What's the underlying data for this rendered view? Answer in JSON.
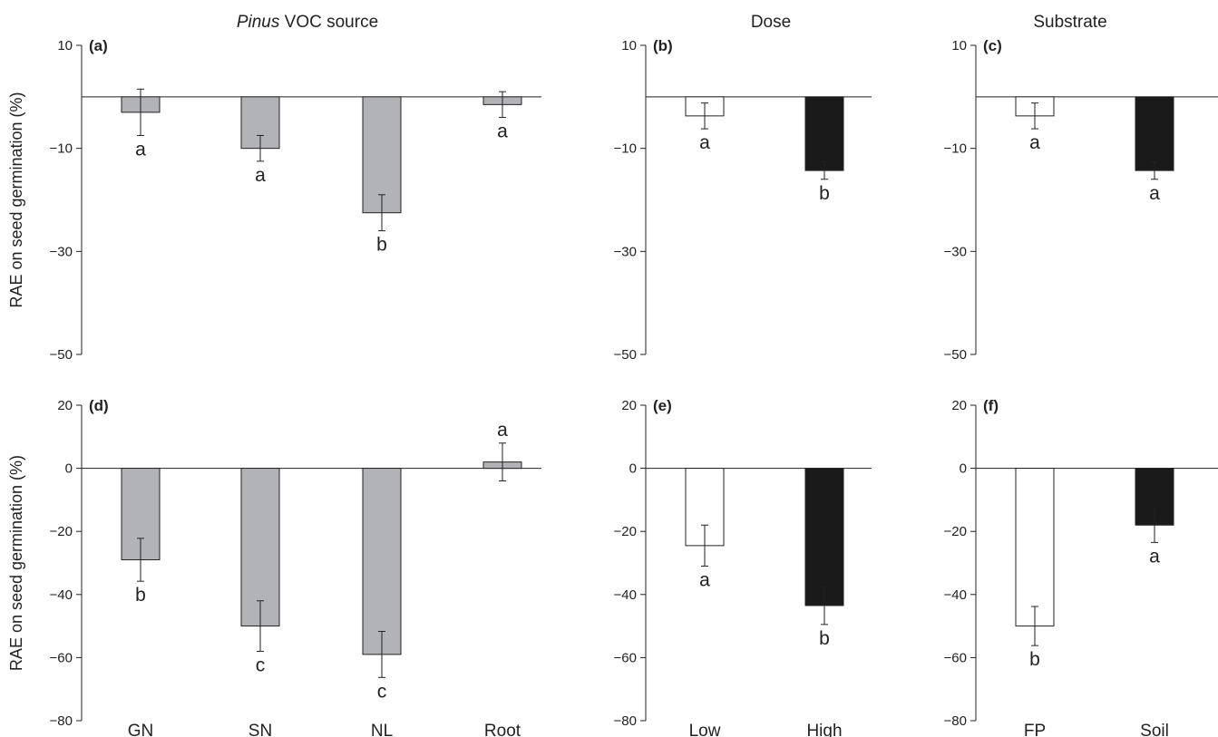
{
  "column_titles": [
    {
      "prefix_italic": "Pinus",
      "rest": " VOC source"
    },
    {
      "prefix_italic": "",
      "rest": "Dose"
    },
    {
      "prefix_italic": "",
      "rest": "Substrate"
    }
  ],
  "colors": {
    "grey": "#b2b3b6",
    "white": "#ffffff",
    "black": "#1a1a1a"
  },
  "chart_data": [
    {
      "type": "bar",
      "panel": "(a)",
      "ylabel": "RAE on seed germination (%)",
      "ylim": [
        -50,
        10
      ],
      "yticks": [
        10,
        -10,
        -30,
        -50
      ],
      "categories": [
        "GN",
        "SN",
        "NL",
        "Root"
      ],
      "show_categories": false,
      "values": [
        -3,
        -10,
        -22.5,
        -1.5
      ],
      "errors": [
        4.5,
        2.5,
        3.5,
        2.5
      ],
      "letters": [
        "a",
        "a",
        "b",
        "a"
      ],
      "letter_pos": [
        "below",
        "below",
        "below",
        "below"
      ],
      "fills": [
        "grey",
        "grey",
        "grey",
        "grey"
      ]
    },
    {
      "type": "bar",
      "panel": "(b)",
      "ylabel": "",
      "ylim": [
        -50,
        10
      ],
      "yticks": [
        10,
        -10,
        -30,
        -50
      ],
      "categories": [
        "Low",
        "High"
      ],
      "show_categories": false,
      "values": [
        -3.7,
        -14.3
      ],
      "errors": [
        2.5,
        1.7
      ],
      "letters": [
        "a",
        "b"
      ],
      "letter_pos": [
        "below",
        "below"
      ],
      "fills": [
        "white",
        "black"
      ]
    },
    {
      "type": "bar",
      "panel": "(c)",
      "ylabel": "",
      "ylim": [
        -50,
        10
      ],
      "yticks": [
        10,
        -10,
        -30,
        -50
      ],
      "categories": [
        "FP",
        "Soil"
      ],
      "show_categories": false,
      "values": [
        -3.7,
        -14.3
      ],
      "errors": [
        2.5,
        1.7
      ],
      "letters": [
        "a",
        "a"
      ],
      "letter_pos": [
        "below",
        "below"
      ],
      "fills": [
        "white",
        "black"
      ]
    },
    {
      "type": "bar",
      "panel": "(d)",
      "ylabel": "RAE on seed germination (%)",
      "ylim": [
        -80,
        20
      ],
      "yticks": [
        20,
        0,
        -20,
        -40,
        -60,
        -80
      ],
      "categories": [
        "GN",
        "SN",
        "NL",
        "Root"
      ],
      "show_categories": true,
      "values": [
        -29,
        -50,
        -59,
        2
      ],
      "errors": [
        6.8,
        8,
        7.3,
        6
      ],
      "letters": [
        "b",
        "c",
        "c",
        "a"
      ],
      "letter_pos": [
        "below",
        "below",
        "below",
        "above"
      ],
      "fills": [
        "grey",
        "grey",
        "grey",
        "grey"
      ]
    },
    {
      "type": "bar",
      "panel": "(e)",
      "ylabel": "",
      "ylim": [
        -80,
        20
      ],
      "yticks": [
        20,
        0,
        -20,
        -40,
        -60,
        -80
      ],
      "categories": [
        "Low",
        "High"
      ],
      "show_categories": true,
      "values": [
        -24.5,
        -43.5
      ],
      "errors": [
        6.5,
        6
      ],
      "letters": [
        "a",
        "b"
      ],
      "letter_pos": [
        "below",
        "below"
      ],
      "fills": [
        "white",
        "black"
      ]
    },
    {
      "type": "bar",
      "panel": "(f)",
      "ylabel": "",
      "ylim": [
        -80,
        20
      ],
      "yticks": [
        20,
        0,
        -20,
        -40,
        -60,
        -80
      ],
      "categories": [
        "FP",
        "Soil"
      ],
      "show_categories": true,
      "values": [
        -50,
        -18
      ],
      "errors": [
        6.2,
        5.5
      ],
      "letters": [
        "b",
        "a"
      ],
      "letter_pos": [
        "below",
        "below"
      ],
      "fills": [
        "white",
        "black"
      ]
    }
  ]
}
